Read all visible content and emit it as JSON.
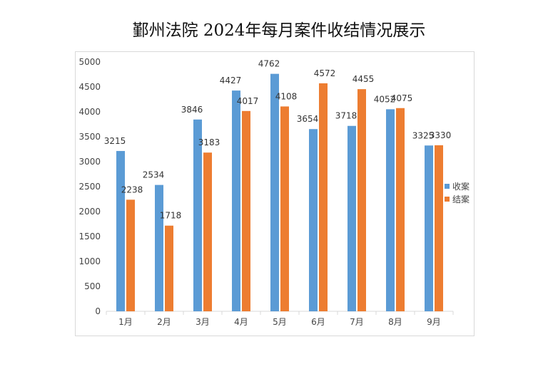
{
  "chart_data": {
    "type": "bar",
    "title": "鄞州法院 2024年每月案件收结情况展示",
    "categories": [
      "1月",
      "2月",
      "3月",
      "4月",
      "5月",
      "6月",
      "7月",
      "8月",
      "9月"
    ],
    "series": [
      {
        "name": "收案",
        "color": "#5b9bd5",
        "values": [
          3215,
          2534,
          3846,
          4427,
          4762,
          3654,
          3718,
          4052,
          3325
        ]
      },
      {
        "name": "结案",
        "color": "#ed7d31",
        "values": [
          2238,
          1718,
          3183,
          4017,
          4108,
          4572,
          4455,
          4075,
          3330
        ]
      }
    ],
    "ylim": [
      0,
      5000
    ],
    "yticks": [
      0,
      500,
      1000,
      1500,
      2000,
      2500,
      3000,
      3500,
      4000,
      4500,
      5000
    ],
    "xlabel": "",
    "ylabel": "",
    "grid": false,
    "legend": "right"
  }
}
